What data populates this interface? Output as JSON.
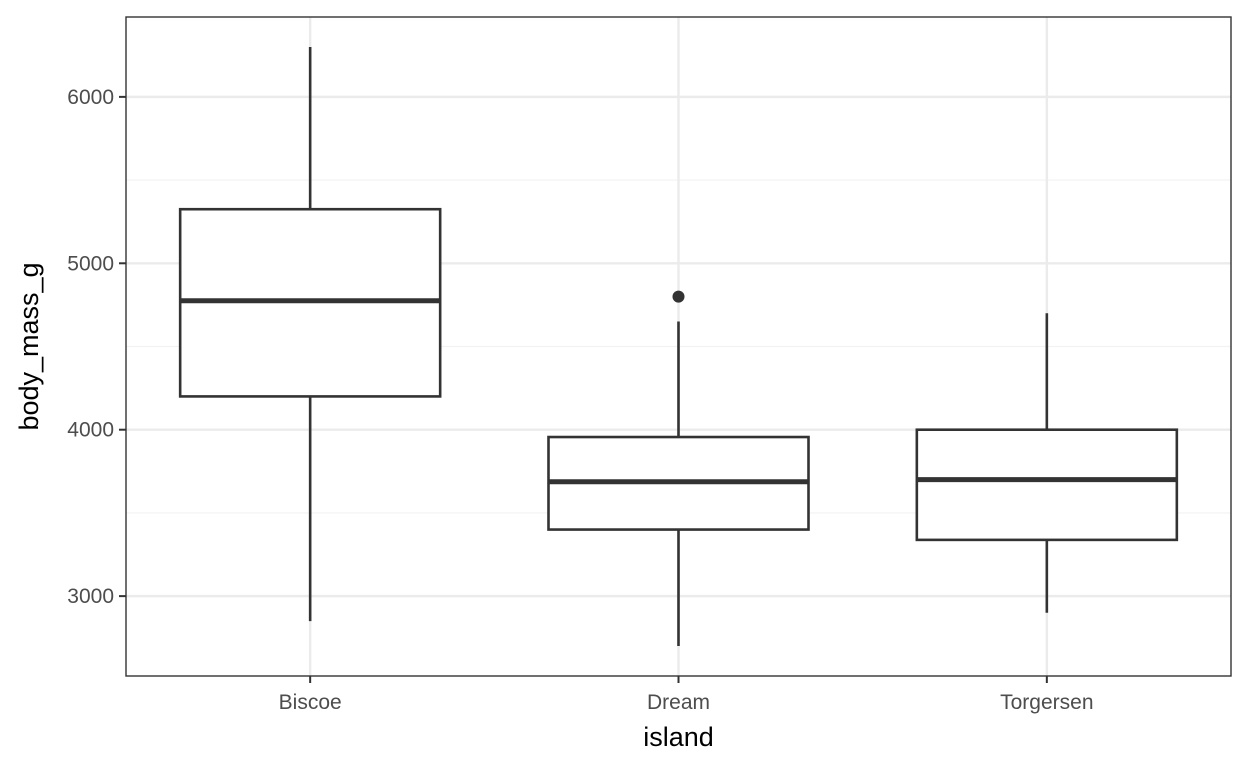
{
  "chart_data": {
    "type": "boxplot",
    "title": "",
    "xlabel": "island",
    "ylabel": "body_mass_g",
    "categories": [
      "Biscoe",
      "Dream",
      "Torgersen"
    ],
    "ylim": [
      2520,
      6480
    ],
    "yticks": [
      3000,
      4000,
      5000,
      6000
    ],
    "ytick_labels": [
      "3000",
      "4000",
      "5000",
      "6000"
    ],
    "minor_yticks": [
      3500,
      4500,
      5500
    ],
    "grid": true,
    "boxes": [
      {
        "category": "Biscoe",
        "min": 2850,
        "q1": 4200,
        "median": 4775,
        "q3": 5325,
        "max": 6300,
        "outliers": []
      },
      {
        "category": "Dream",
        "min": 2700,
        "q1": 3400,
        "median": 3687,
        "q3": 3956,
        "max": 4650,
        "outliers": [
          4800
        ]
      },
      {
        "category": "Torgersen",
        "min": 2900,
        "q1": 3338,
        "median": 3700,
        "q3": 4000,
        "max": 4700,
        "outliers": []
      }
    ],
    "colors": {
      "panel_border": "#333333",
      "grid_major": "#ebebeb",
      "grid_minor": "#f2f2f2",
      "box_stroke": "#333333",
      "box_fill": "#ffffff",
      "tick_label": "#4d4d4d",
      "axis_title": "#000000"
    }
  }
}
